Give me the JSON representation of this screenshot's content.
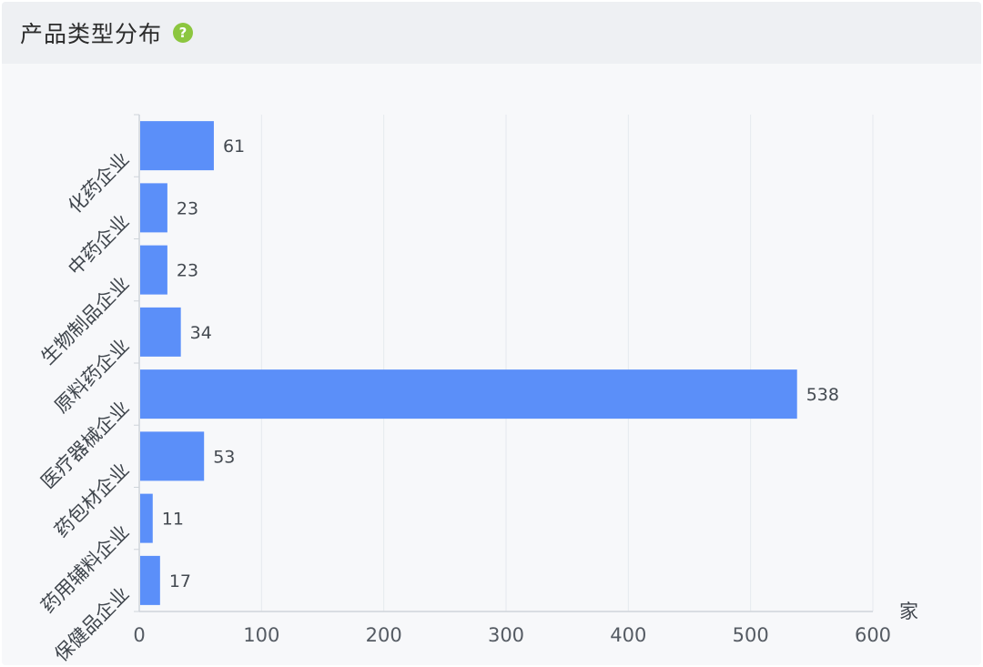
{
  "header": {
    "title": "产品类型分布",
    "help_icon": "question-mark-icon",
    "help_glyph": "?"
  },
  "colors": {
    "bar": "#5b8ff9",
    "help_icon": "#8cc63f",
    "grid": "#e6e9ee"
  },
  "chart_data": {
    "type": "bar",
    "orientation": "horizontal",
    "categories": [
      "化药企业",
      "中药企业",
      "生物制品企业",
      "原料药企业",
      "医疗器械企业",
      "药包材企业",
      "药用辅料企业",
      "保健品企业"
    ],
    "values": [
      61,
      23,
      23,
      34,
      538,
      53,
      11,
      17
    ],
    "xlim": [
      0,
      600
    ],
    "x_ticks": [
      0,
      100,
      200,
      300,
      400,
      500,
      600
    ],
    "xunit": "家",
    "grid": true,
    "data_labels": true
  }
}
